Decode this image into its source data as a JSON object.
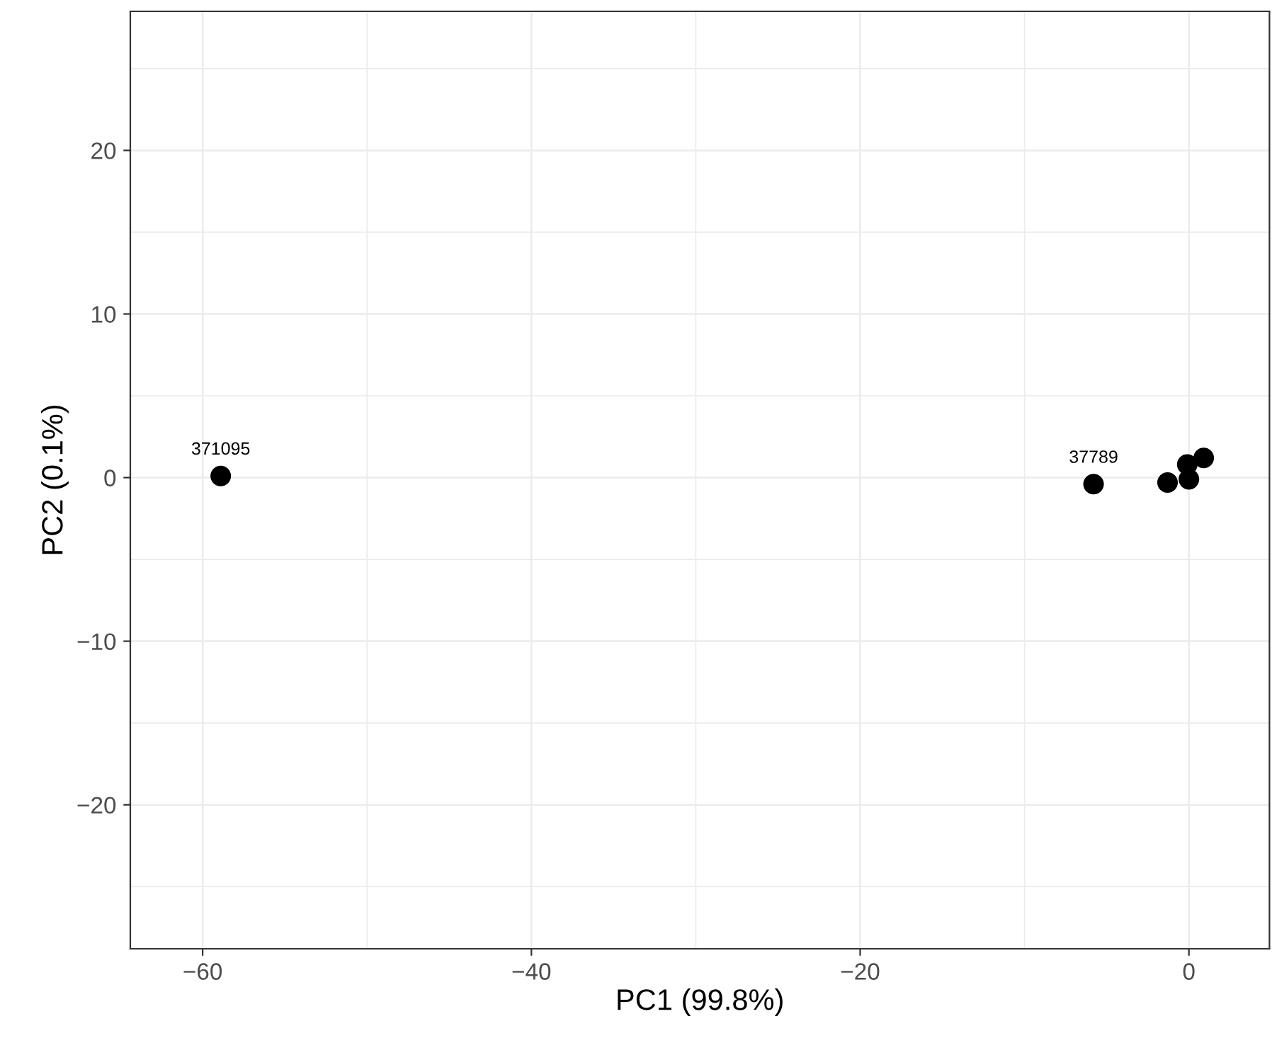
{
  "chart_data": {
    "type": "scatter",
    "xlabel": "PC1 (99.8%)",
    "ylabel": "PC2 (0.1%)",
    "x": [
      -58.9,
      -5.8,
      -1.3,
      0.0,
      0.9,
      -0.1
    ],
    "series": [
      {
        "color": "#000000",
        "values": [
          0.1,
          -0.4,
          -0.3,
          -0.1,
          1.2,
          0.8
        ]
      }
    ],
    "xlim": [
      -64.4,
      4.9
    ],
    "ylim": [
      -28.8,
      28.5
    ],
    "xticks": [
      -60,
      -40,
      -20,
      0
    ],
    "yticks": [
      -20,
      -10,
      0,
      10,
      20
    ],
    "grid": true,
    "marker": "circle",
    "annotations": [
      {
        "text": "371095",
        "x": -58.9,
        "y": 0.1
      },
      {
        "text": "37789",
        "x": -5.8,
        "y": -0.4
      }
    ]
  }
}
